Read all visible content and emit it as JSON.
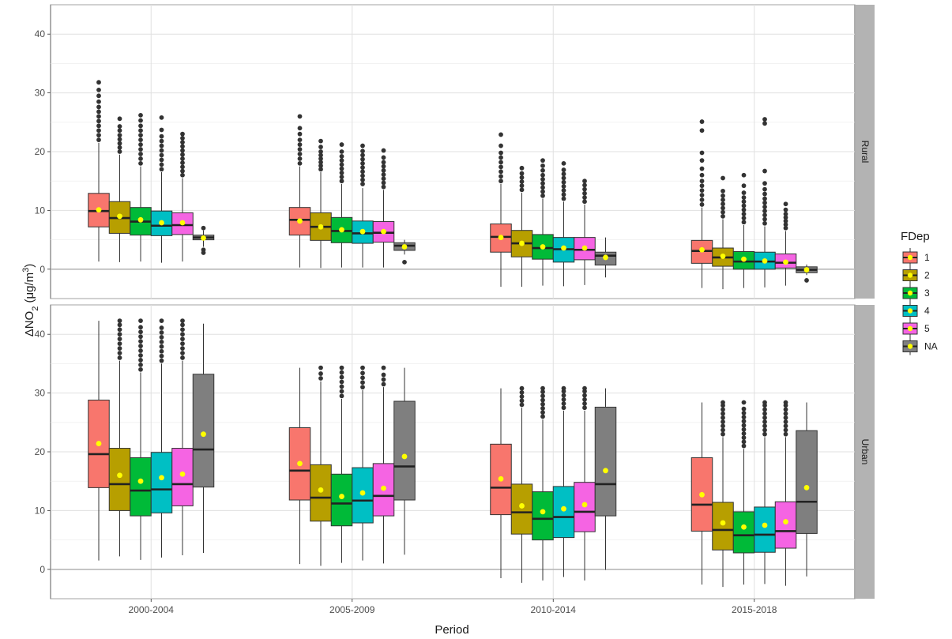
{
  "chart_data": {
    "type": "boxplot",
    "xlabel": "Period",
    "ylabel_prefix": "ΔNO",
    "ylabel_sub": "2",
    "ylabel_unit_pre": " (μg/m",
    "ylabel_sup": "3",
    "ylabel_unit_post": ")",
    "legend_title": "FDep",
    "legend_position": "right",
    "categories": [
      "2000-2004",
      "2005-2009",
      "2010-2014",
      "2015-2018"
    ],
    "groups": [
      "1",
      "2",
      "3",
      "4",
      "5",
      "NA"
    ],
    "group_colors": [
      "#F8766D",
      "#B79F00",
      "#00BA38",
      "#00BFC4",
      "#F564E3",
      "#7F7F7F"
    ],
    "mean_marker_color": "#FFFF00",
    "grid": true,
    "yticks": [
      0,
      10,
      20,
      30,
      40
    ],
    "panels": [
      {
        "name": "Rural",
        "ylim": [
          -5,
          45
        ],
        "boxes": [
          [
            {
              "q1": 7.2,
              "median": 9.9,
              "q3": 12.9,
              "lo": 1.3,
              "hi": 21.5,
              "mean": 10.1,
              "outliers": [
                22,
                22.8,
                23.6,
                24.4,
                25.2,
                26,
                26.8,
                27.6,
                28.5,
                29.5,
                30.5,
                31.8
              ]
            },
            {
              "q1": 6.1,
              "median": 8.7,
              "q3": 11.5,
              "lo": 1.2,
              "hi": 19.5,
              "mean": 9.0,
              "outliers": [
                20,
                20.7,
                21.4,
                22.1,
                22.8,
                23.6,
                24.3,
                25.6
              ]
            },
            {
              "q1": 5.8,
              "median": 8.1,
              "q3": 10.5,
              "lo": 1.3,
              "hi": 17.5,
              "mean": 8.4,
              "outliers": [
                18,
                18.8,
                19.6,
                20.4,
                21.2,
                22,
                22.8,
                23.6,
                24.4,
                25.3,
                26.2
              ]
            },
            {
              "q1": 5.7,
              "median": 7.4,
              "q3": 9.9,
              "lo": 1.1,
              "hi": 16.5,
              "mean": 7.9,
              "outliers": [
                17,
                17.8,
                18.6,
                19.4,
                20.2,
                21,
                21.8,
                22.6,
                23.7,
                25.8
              ]
            },
            {
              "q1": 5.9,
              "median": 7.5,
              "q3": 9.6,
              "lo": 1.3,
              "hi": 15.5,
              "mean": 7.9,
              "outliers": [
                16,
                16.7,
                17.4,
                18.1,
                18.8,
                19.5,
                20.2,
                20.9,
                21.6,
                22.3,
                23
              ]
            },
            {
              "q1": 5.0,
              "median": 5.4,
              "q3": 5.8,
              "lo": 3.8,
              "hi": 6.6,
              "mean": 5.3,
              "outliers": [
                2.8,
                3.3,
                7.0
              ]
            }
          ],
          [
            {
              "q1": 5.8,
              "median": 8.4,
              "q3": 10.5,
              "lo": 0.3,
              "hi": 17.5,
              "mean": 8.2,
              "outliers": [
                18,
                18.8,
                19.6,
                20.4,
                21.2,
                22,
                23,
                24,
                26
              ]
            },
            {
              "q1": 4.9,
              "median": 7.2,
              "q3": 9.6,
              "lo": 0.2,
              "hi": 16.5,
              "mean": 7.2,
              "outliers": [
                17,
                17.6,
                18.2,
                18.8,
                19.4,
                20,
                20.8,
                21.8
              ]
            },
            {
              "q1": 4.5,
              "median": 6.5,
              "q3": 8.8,
              "lo": 0.3,
              "hi": 14.5,
              "mean": 6.7,
              "outliers": [
                15,
                15.7,
                16.4,
                17.1,
                17.8,
                18.5,
                19.2,
                20,
                21.2
              ]
            },
            {
              "q1": 4.4,
              "median": 6.1,
              "q3": 8.2,
              "lo": 0.3,
              "hi": 13.8,
              "mean": 6.4,
              "outliers": [
                14.5,
                15.2,
                15.9,
                16.6,
                17.3,
                18,
                18.7,
                19.4,
                20.1,
                21
              ]
            },
            {
              "q1": 4.6,
              "median": 6.2,
              "q3": 8.1,
              "lo": 0.3,
              "hi": 13.5,
              "mean": 6.4,
              "outliers": [
                14,
                14.7,
                15.4,
                16.1,
                16.8,
                17.5,
                18.2,
                19,
                20.2
              ]
            },
            {
              "q1": 3.2,
              "median": 4.0,
              "q3": 4.5,
              "lo": 2.5,
              "hi": 5.0,
              "mean": 3.8,
              "outliers": [
                1.2
              ]
            }
          ],
          [
            {
              "q1": 2.9,
              "median": 5.5,
              "q3": 7.7,
              "lo": -3.0,
              "hi": 14.5,
              "mean": 5.4,
              "outliers": [
                15,
                15.8,
                16.6,
                17.4,
                18.2,
                19,
                19.8,
                21,
                22.9
              ]
            },
            {
              "q1": 2.1,
              "median": 4.4,
              "q3": 6.6,
              "lo": -3.0,
              "hi": 13.0,
              "mean": 4.4,
              "outliers": [
                13.5,
                14.2,
                14.9,
                15.6,
                16.3,
                17.2
              ]
            },
            {
              "q1": 1.7,
              "median": 3.6,
              "q3": 5.9,
              "lo": -2.8,
              "hi": 12.0,
              "mean": 3.8,
              "outliers": [
                12.5,
                13.2,
                13.9,
                14.6,
                15.3,
                16,
                16.8,
                17.6,
                18.5
              ]
            },
            {
              "q1": 1.2,
              "median": 3.4,
              "q3": 5.4,
              "lo": -2.9,
              "hi": 11.5,
              "mean": 3.6,
              "outliers": [
                12,
                12.7,
                13.4,
                14.1,
                14.8,
                15.5,
                16.2,
                16.9,
                18
              ]
            },
            {
              "q1": 1.6,
              "median": 3.3,
              "q3": 5.4,
              "lo": -2.7,
              "hi": 11.0,
              "mean": 3.6,
              "outliers": [
                11.5,
                12.2,
                12.9,
                13.6,
                14.3,
                15
              ]
            },
            {
              "q1": 0.7,
              "median": 2.3,
              "q3": 2.9,
              "lo": -1.4,
              "hi": 5.4,
              "mean": 2.0,
              "outliers": []
            }
          ],
          [
            {
              "q1": 1.0,
              "median": 3.1,
              "q3": 4.9,
              "lo": -3.2,
              "hi": 10.5,
              "mean": 3.3,
              "outliers": [
                11,
                11.8,
                12.6,
                13.4,
                14.2,
                15,
                16,
                17.1,
                18.5,
                19.8,
                23.6,
                25.1
              ]
            },
            {
              "q1": 0.5,
              "median": 2.0,
              "q3": 3.6,
              "lo": -3.4,
              "hi": 8.5,
              "mean": 2.2,
              "outliers": [
                9,
                9.7,
                10.4,
                11.1,
                11.8,
                12.5,
                13.3,
                15.5
              ]
            },
            {
              "q1": 0.0,
              "median": 1.3,
              "q3": 3.0,
              "lo": -3.2,
              "hi": 7.5,
              "mean": 1.7,
              "outliers": [
                8,
                8.7,
                9.4,
                10.1,
                10.8,
                11.5,
                12.2,
                13,
                14.2,
                16
              ]
            },
            {
              "q1": 0.0,
              "median": 1.3,
              "q3": 2.9,
              "lo": -3.1,
              "hi": 7.3,
              "mean": 1.4,
              "outliers": [
                7.8,
                8.5,
                9.2,
                9.9,
                10.6,
                11.3,
                12,
                12.8,
                13.6,
                14.6,
                16.7,
                24.8,
                25.5
              ]
            },
            {
              "q1": 0.2,
              "median": 1.1,
              "q3": 2.6,
              "lo": -2.8,
              "hi": 6.5,
              "mean": 1.2,
              "outliers": [
                7,
                7.6,
                8.2,
                8.8,
                9.4,
                10.1,
                11.1
              ]
            },
            {
              "q1": -0.6,
              "median": -0.1,
              "q3": 0.4,
              "lo": -1.0,
              "hi": 0.8,
              "mean": -0.1,
              "outliers": [
                -1.9
              ]
            }
          ]
        ]
      },
      {
        "name": "Urban",
        "ylim": [
          -5,
          45
        ],
        "boxes": [
          [
            {
              "q1": 13.9,
              "median": 19.6,
              "q3": 28.8,
              "lo": 1.5,
              "hi": 42.3,
              "mean": 21.4,
              "outliers": []
            },
            {
              "q1": 10.0,
              "median": 14.5,
              "q3": 20.6,
              "lo": 2.2,
              "hi": 35.5,
              "mean": 16.0,
              "outliers": [
                36,
                36.8,
                37.6,
                38.4,
                39.2,
                40,
                40.8,
                41.6,
                42.3
              ]
            },
            {
              "q1": 9.1,
              "median": 13.4,
              "q3": 19.0,
              "lo": 1.6,
              "hi": 33.5,
              "mean": 15.0,
              "outliers": [
                34,
                34.8,
                35.6,
                36.4,
                37.2,
                38,
                38.8,
                39.6,
                40.4,
                41.2,
                42.3
              ]
            },
            {
              "q1": 9.6,
              "median": 13.6,
              "q3": 19.9,
              "lo": 2.0,
              "hi": 35.0,
              "mean": 15.6,
              "outliers": [
                35.5,
                36.3,
                37.1,
                37.9,
                38.7,
                39.5,
                40.3,
                41.1,
                42.3
              ]
            },
            {
              "q1": 10.8,
              "median": 14.5,
              "q3": 20.6,
              "lo": 2.4,
              "hi": 35.5,
              "mean": 16.2,
              "outliers": [
                36,
                36.8,
                37.6,
                38.4,
                39.2,
                40,
                40.8,
                41.6,
                42.3
              ]
            },
            {
              "q1": 14.0,
              "median": 20.4,
              "q3": 33.2,
              "lo": 2.8,
              "hi": 41.8,
              "mean": 23.0,
              "outliers": []
            }
          ],
          [
            {
              "q1": 11.8,
              "median": 16.8,
              "q3": 24.1,
              "lo": 0.9,
              "hi": 34.3,
              "mean": 18.0,
              "outliers": []
            },
            {
              "q1": 8.2,
              "median": 12.2,
              "q3": 17.8,
              "lo": 0.6,
              "hi": 32.0,
              "mean": 13.5,
              "outliers": [
                32.5,
                33.3,
                34.3
              ]
            },
            {
              "q1": 7.4,
              "median": 11.2,
              "q3": 16.2,
              "lo": 1.1,
              "hi": 29.0,
              "mean": 12.4,
              "outliers": [
                29.5,
                30.3,
                31.1,
                31.9,
                32.7,
                33.5,
                34.3
              ]
            },
            {
              "q1": 7.9,
              "median": 11.7,
              "q3": 17.3,
              "lo": 1.5,
              "hi": 30.5,
              "mean": 13.0,
              "outliers": [
                31,
                31.8,
                32.6,
                33.4,
                34.3
              ]
            },
            {
              "q1": 9.1,
              "median": 12.5,
              "q3": 18.0,
              "lo": 1.0,
              "hi": 31.0,
              "mean": 13.8,
              "outliers": [
                31.5,
                32.3,
                33.1,
                34.3
              ]
            },
            {
              "q1": 11.8,
              "median": 17.5,
              "q3": 28.6,
              "lo": 2.5,
              "hi": 34.3,
              "mean": 19.2,
              "outliers": []
            }
          ],
          [
            {
              "q1": 9.3,
              "median": 13.9,
              "q3": 21.3,
              "lo": -1.5,
              "hi": 30.8,
              "mean": 15.4,
              "outliers": []
            },
            {
              "q1": 6.0,
              "median": 9.7,
              "q3": 14.5,
              "lo": -2.3,
              "hi": 27.5,
              "mean": 10.8,
              "outliers": [
                28,
                28.7,
                29.4,
                30.1,
                30.8
              ]
            },
            {
              "q1": 5.0,
              "median": 8.6,
              "q3": 13.2,
              "lo": -1.9,
              "hi": 25.5,
              "mean": 9.8,
              "outliers": [
                26,
                26.7,
                27.4,
                28.1,
                28.8,
                29.5,
                30.2,
                30.8
              ]
            },
            {
              "q1": 5.4,
              "median": 8.9,
              "q3": 14.1,
              "lo": -1.3,
              "hi": 27.0,
              "mean": 10.3,
              "outliers": [
                27.5,
                28.2,
                28.9,
                29.6,
                30.3,
                30.8
              ]
            },
            {
              "q1": 6.4,
              "median": 9.8,
              "q3": 14.8,
              "lo": -1.9,
              "hi": 27.0,
              "mean": 11.0,
              "outliers": [
                27.5,
                28.2,
                28.9,
                29.6,
                30.3,
                30.8
              ]
            },
            {
              "q1": 9.1,
              "median": 14.5,
              "q3": 27.6,
              "lo": -0.1,
              "hi": 30.8,
              "mean": 16.8,
              "outliers": []
            }
          ],
          [
            {
              "q1": 6.5,
              "median": 11.0,
              "q3": 19.0,
              "lo": -2.6,
              "hi": 28.4,
              "mean": 12.7,
              "outliers": []
            },
            {
              "q1": 3.3,
              "median": 6.7,
              "q3": 11.4,
              "lo": -3.0,
              "hi": 22.5,
              "mean": 7.9,
              "outliers": [
                23,
                23.7,
                24.4,
                25.1,
                25.8,
                26.5,
                27.2,
                27.9,
                28.4
              ]
            },
            {
              "q1": 2.8,
              "median": 5.8,
              "q3": 9.8,
              "lo": -2.6,
              "hi": 20.5,
              "mean": 7.2,
              "outliers": [
                21,
                21.7,
                22.4,
                23.1,
                23.8,
                24.5,
                25.2,
                25.9,
                26.6,
                27.3,
                28.4
              ]
            },
            {
              "q1": 2.9,
              "median": 5.9,
              "q3": 10.6,
              "lo": -2.5,
              "hi": 22.5,
              "mean": 7.5,
              "outliers": [
                23,
                23.7,
                24.4,
                25.1,
                25.8,
                26.5,
                27.2,
                27.9,
                28.4
              ]
            },
            {
              "q1": 3.6,
              "median": 6.5,
              "q3": 11.5,
              "lo": -2.8,
              "hi": 22.5,
              "mean": 8.1,
              "outliers": [
                23,
                23.7,
                24.4,
                25.1,
                25.8,
                26.5,
                27.2,
                27.9,
                28.4
              ]
            },
            {
              "q1": 6.1,
              "median": 11.5,
              "q3": 23.6,
              "lo": -1.2,
              "hi": 28.4,
              "mean": 13.9,
              "outliers": []
            }
          ]
        ]
      }
    ]
  }
}
